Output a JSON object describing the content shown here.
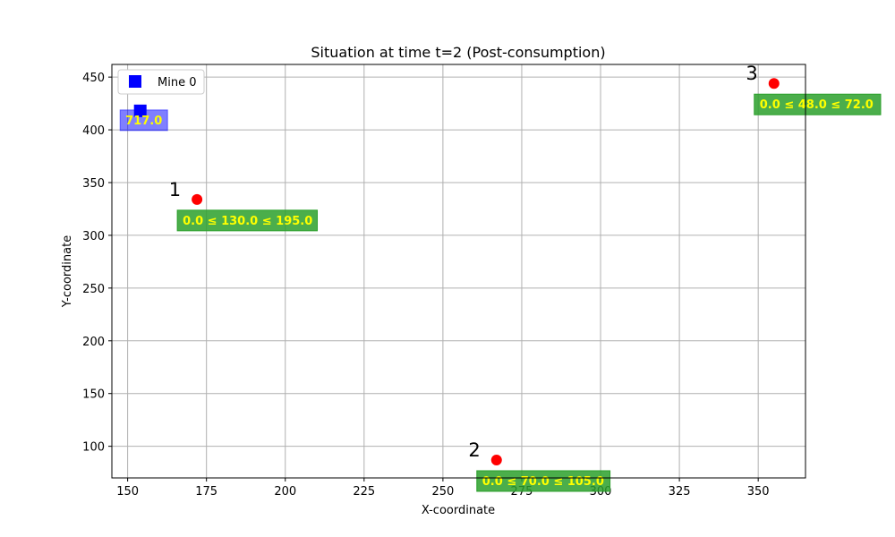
{
  "chart_data": {
    "type": "scatter",
    "title": "Situation at time t=2 (Post-consumption)",
    "xlabel": "X-coordinate",
    "ylabel": "Y-coordinate",
    "xlim": [
      145,
      365
    ],
    "ylim": [
      70,
      462
    ],
    "xticks": [
      150,
      175,
      200,
      225,
      250,
      275,
      300,
      325,
      350
    ],
    "yticks": [
      100,
      150,
      200,
      250,
      300,
      350,
      400,
      450
    ],
    "grid": true,
    "legend": {
      "location": "upper-left",
      "entries": [
        {
          "label": "Mine 0",
          "marker": "square",
          "color": "#0000ff"
        }
      ]
    },
    "mines": [
      {
        "x": 154,
        "y": 418,
        "label": "717.0",
        "color": "#0000ff"
      }
    ],
    "points": [
      {
        "id": "1",
        "x": 172,
        "y": 334,
        "label": "0.0 ≤ 130.0 ≤ 195.0",
        "color": "#ff0000"
      },
      {
        "id": "2",
        "x": 267,
        "y": 87,
        "label": "0.0 ≤ 70.0 ≤ 105.0",
        "color": "#ff0000"
      },
      {
        "id": "3",
        "x": 355,
        "y": 444,
        "label": "0.0 ≤ 48.0 ≤ 72.0",
        "color": "#ff0000"
      }
    ],
    "colors": {
      "point_box": "#2ca02c",
      "mine_box": "#0000ff",
      "box_text": "#ffff00",
      "grid": "#b0b0b0"
    }
  }
}
